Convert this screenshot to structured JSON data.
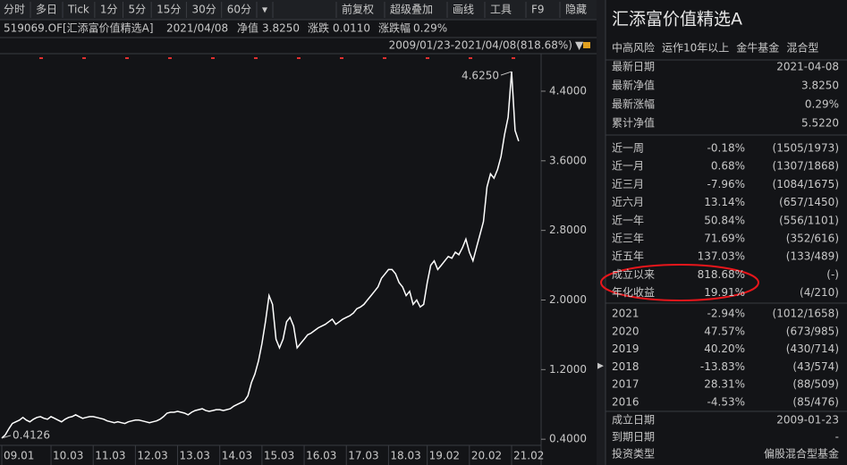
{
  "toolbar": {
    "left": [
      "分时",
      "多日",
      "Tick",
      "1分",
      "5分",
      "15分",
      "30分",
      "60分",
      "▾"
    ],
    "right": [
      "前复权",
      "超级叠加",
      "画线",
      "工具",
      "F9",
      "隐藏"
    ]
  },
  "info": {
    "code": "519069.OF[汇添富价值精选A]",
    "date": "2021/04/08",
    "nav_label": "净值",
    "nav": "3.8250",
    "chg_label": "涨跌",
    "chg": "0.0110",
    "pct_label": "涨跌幅",
    "pct": "0.29%",
    "range": "2009/01/23-2021/04/08",
    "range_pct": "(818.68%)"
  },
  "chart_data": {
    "type": "line",
    "color": "#ffffff",
    "max_label": "4.6250",
    "min_label": "0.4126",
    "categories": [
      "09.01",
      null,
      null,
      null,
      null,
      null,
      null,
      null,
      null,
      null,
      null,
      null,
      null,
      null,
      "10.03",
      null,
      null,
      null,
      null,
      null,
      null,
      null,
      null,
      null,
      null,
      null,
      "11.03",
      null,
      null,
      null,
      null,
      null,
      null,
      null,
      null,
      null,
      null,
      null,
      "12.03",
      null,
      null,
      null,
      null,
      null,
      null,
      null,
      null,
      null,
      null,
      null,
      "13.03",
      null,
      null,
      null,
      null,
      null,
      null,
      null,
      null,
      null,
      null,
      null,
      "14.03",
      null,
      null,
      null,
      null,
      null,
      null,
      null,
      null,
      null,
      null,
      null,
      "15.03",
      null,
      null,
      null,
      null,
      null,
      null,
      null,
      null,
      null,
      null,
      null,
      "16.03",
      null,
      null,
      null,
      null,
      null,
      null,
      null,
      null,
      null,
      null,
      null,
      "17.03",
      null,
      null,
      null,
      null,
      null,
      null,
      null,
      null,
      null,
      null,
      null,
      "18.03",
      null,
      null,
      null,
      null,
      null,
      null,
      null,
      null,
      null,
      null,
      "19.02",
      null,
      null,
      null,
      null,
      null,
      null,
      null,
      null,
      null,
      null,
      null,
      "20.02",
      null,
      null,
      null,
      null,
      null,
      null,
      null,
      null,
      null,
      null,
      null,
      "21.02",
      null,
      null
    ],
    "values": [
      0.4126,
      0.45,
      0.52,
      0.58,
      0.6,
      0.62,
      0.65,
      0.62,
      0.6,
      0.63,
      0.65,
      0.66,
      0.64,
      0.63,
      0.66,
      0.64,
      0.62,
      0.6,
      0.63,
      0.65,
      0.66,
      0.68,
      0.66,
      0.64,
      0.65,
      0.66,
      0.66,
      0.65,
      0.64,
      0.63,
      0.61,
      0.6,
      0.59,
      0.6,
      0.59,
      0.58,
      0.6,
      0.61,
      0.62,
      0.62,
      0.61,
      0.6,
      0.59,
      0.6,
      0.61,
      0.63,
      0.66,
      0.7,
      0.71,
      0.71,
      0.72,
      0.71,
      0.7,
      0.68,
      0.71,
      0.73,
      0.74,
      0.75,
      0.73,
      0.72,
      0.73,
      0.74,
      0.74,
      0.73,
      0.74,
      0.75,
      0.78,
      0.8,
      0.82,
      0.84,
      0.9,
      1.05,
      1.15,
      1.3,
      1.5,
      1.75,
      2.05,
      1.95,
      1.55,
      1.45,
      1.55,
      1.75,
      1.8,
      1.7,
      1.45,
      1.5,
      1.55,
      1.6,
      1.62,
      1.65,
      1.68,
      1.7,
      1.72,
      1.75,
      1.78,
      1.72,
      1.75,
      1.78,
      1.8,
      1.82,
      1.85,
      1.9,
      1.92,
      1.95,
      2.0,
      2.05,
      2.1,
      2.15,
      2.25,
      2.3,
      2.35,
      2.35,
      2.3,
      2.2,
      2.15,
      2.05,
      2.1,
      1.95,
      2.0,
      1.92,
      1.95,
      2.2,
      2.4,
      2.45,
      2.35,
      2.4,
      2.45,
      2.5,
      2.48,
      2.55,
      2.52,
      2.6,
      2.7,
      2.55,
      2.45,
      2.6,
      2.75,
      2.9,
      3.3,
      3.45,
      3.4,
      3.5,
      3.65,
      3.9,
      4.1,
      4.625,
      3.95,
      3.825
    ],
    "ylim": [
      0.34,
      4.78
    ],
    "yticks": [
      {
        "value": 4.4,
        "label": "4.4000"
      },
      {
        "value": 3.6,
        "label": "3.6000"
      },
      {
        "value": 2.8,
        "label": "2.8000"
      },
      {
        "value": 2.0,
        "label": "2.0000"
      },
      {
        "value": 1.2,
        "label": "1.2000"
      },
      {
        "value": 0.4,
        "label": "0.4000"
      }
    ]
  },
  "panel": {
    "title": "汇添富价值精选A",
    "tags": [
      "中高风险",
      "运作10年以上",
      "金牛基金",
      "混合型"
    ],
    "summary": [
      [
        "最新日期",
        "2021-04-08"
      ],
      [
        "最新净值",
        "3.8250"
      ],
      [
        "最新涨幅",
        "0.29%"
      ],
      [
        "累计净值",
        "5.5220"
      ]
    ],
    "periods": [
      [
        "近一周",
        "-0.18%",
        "(1505/1973)"
      ],
      [
        "近一月",
        "0.68%",
        "(1307/1868)"
      ],
      [
        "近三月",
        "-7.96%",
        "(1084/1675)"
      ],
      [
        "近六月",
        "13.14%",
        "(657/1450)"
      ],
      [
        "近一年",
        "50.84%",
        "(556/1101)"
      ],
      [
        "近三年",
        "71.69%",
        "(352/616)"
      ],
      [
        "近五年",
        "137.03%",
        "(133/489)"
      ],
      [
        "成立以来",
        "818.68%",
        "(-)"
      ],
      [
        "年化收益",
        "19.91%",
        "(4/210)"
      ]
    ],
    "years": [
      [
        "2021",
        "-2.94%",
        "(1012/1658)"
      ],
      [
        "2020",
        "47.57%",
        "(673/985)"
      ],
      [
        "2019",
        "40.20%",
        "(430/714)"
      ],
      [
        "2018",
        "-13.83%",
        "(43/574)"
      ],
      [
        "2017",
        "28.31%",
        "(88/509)"
      ],
      [
        "2016",
        "-4.53%",
        "(85/476)"
      ]
    ],
    "details": [
      [
        "成立日期",
        "2009-01-23"
      ],
      [
        "到期日期",
        "-"
      ],
      [
        "投资类型",
        "偏股混合型基金"
      ]
    ]
  }
}
